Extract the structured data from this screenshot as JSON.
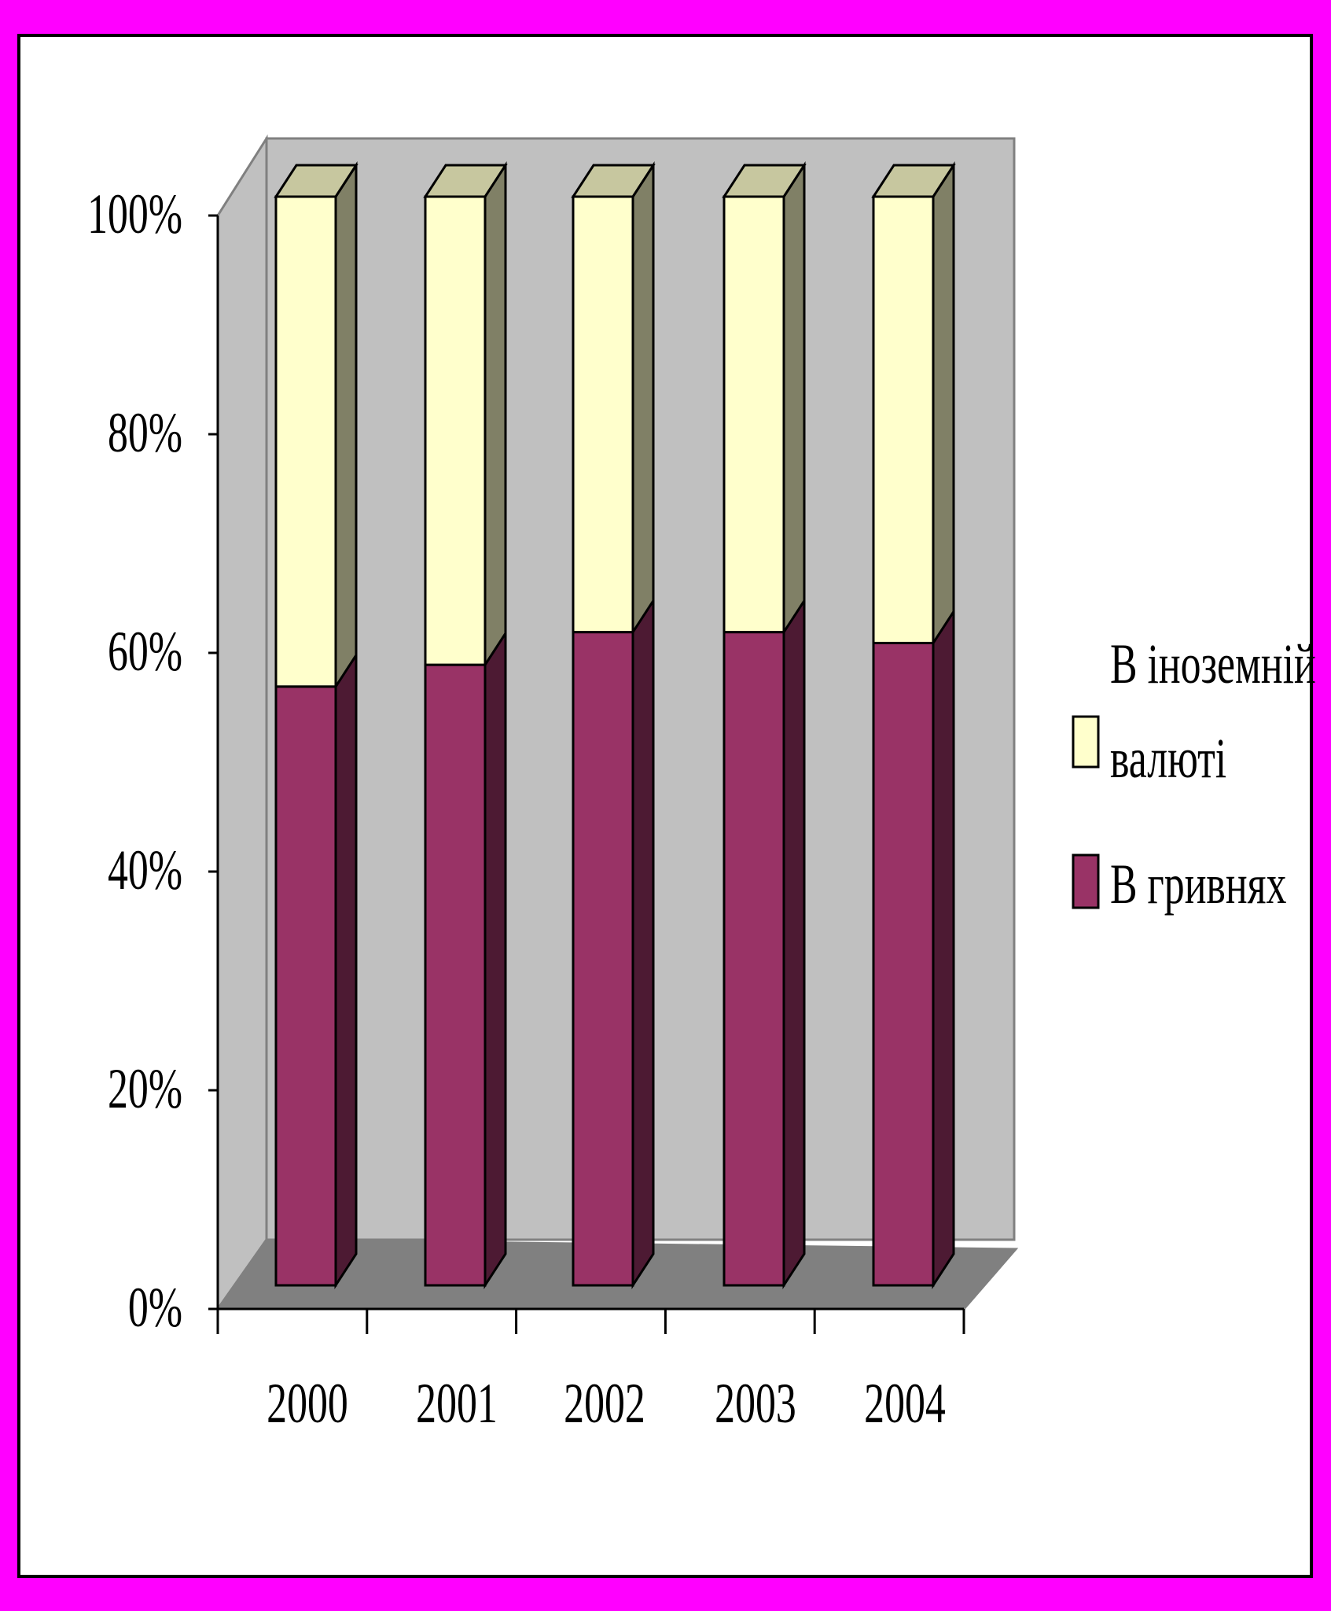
{
  "chart_data": {
    "type": "bar",
    "stacked": true,
    "percent_stacked": true,
    "three_d": true,
    "categories": [
      "2000",
      "2001",
      "2002",
      "2003",
      "2004"
    ],
    "series": [
      {
        "name": "В гривнях",
        "values": [
          55,
          57,
          60,
          60,
          59
        ],
        "color": "#993366"
      },
      {
        "name": "В іноземній валюті",
        "values": [
          45,
          43,
          40,
          40,
          41
        ],
        "color": "#ffffcc"
      }
    ],
    "y_ticks": [
      "0%",
      "20%",
      "40%",
      "60%",
      "80%",
      "100%"
    ],
    "ylim": [
      0,
      100
    ],
    "legend_position": "right",
    "grid": false,
    "colors": {
      "background_outer": "#ff00ff",
      "plot_area": "#c0c0c0",
      "floor": "#808080",
      "border": "#000000"
    }
  },
  "legend": {
    "foreign_line1": "В іноземній",
    "foreign_line2": "валюті",
    "uah": "В гривнях"
  }
}
